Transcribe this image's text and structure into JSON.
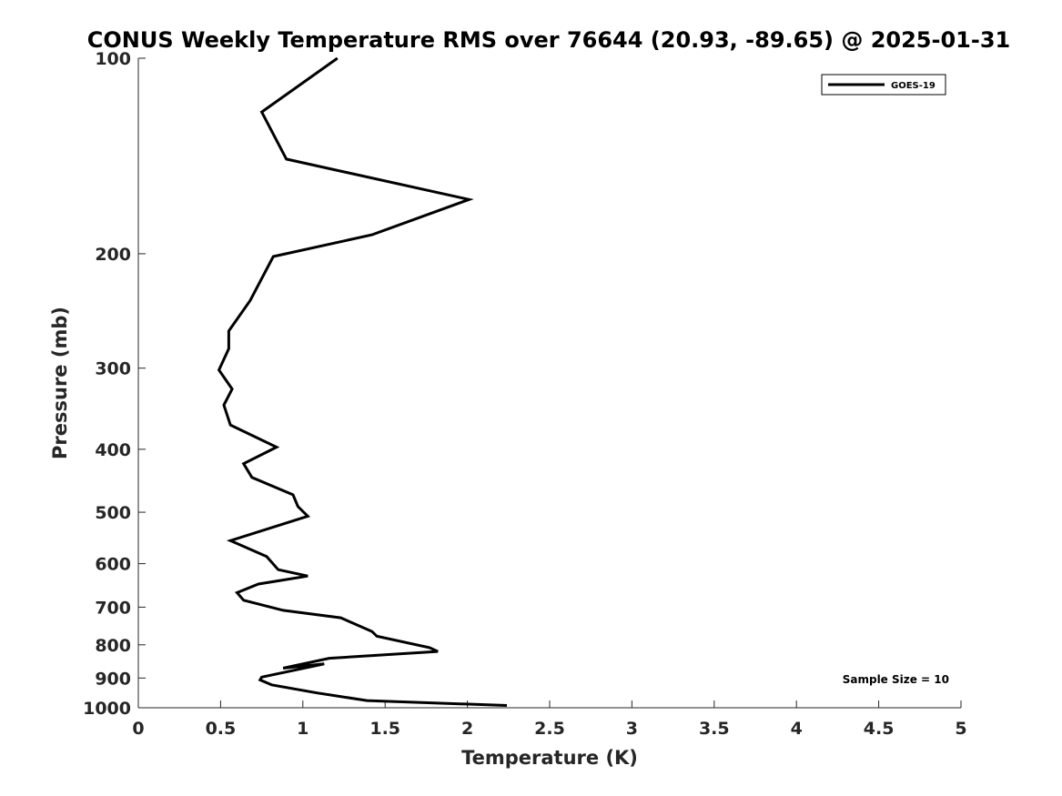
{
  "chart_data": {
    "type": "line",
    "title": "CONUS Weekly Temperature RMS over 76644 (20.93, -89.65) @ 2025-01-31",
    "xlabel": "Temperature (K)",
    "ylabel": "Pressure (mb)",
    "xlim": [
      0,
      5
    ],
    "ylim": [
      1000,
      100
    ],
    "y_scale": "log",
    "y_inverted": true,
    "grid": false,
    "x_ticks": [
      "0",
      "0.5",
      "1",
      "1.5",
      "2",
      "2.5",
      "3",
      "3.5",
      "4",
      "4.5",
      "5"
    ],
    "y_ticks": [
      "100",
      "200",
      "300",
      "400",
      "500",
      "600",
      "700",
      "800",
      "900",
      "1000"
    ],
    "legend_position": "top-right",
    "series": [
      {
        "name": "GOES-19",
        "color": "#000000",
        "x": [
          1.21,
          0.75,
          0.9,
          2.01,
          1.42,
          0.82,
          0.68,
          0.55,
          0.55,
          0.49,
          0.57,
          0.52,
          0.56,
          0.84,
          0.64,
          0.69,
          0.94,
          0.97,
          1.03,
          0.56,
          0.78,
          0.85,
          1.03,
          0.73,
          0.6,
          0.64,
          0.88,
          1.23,
          1.42,
          1.45,
          1.77,
          1.82,
          1.16,
          0.88,
          1.13,
          0.75,
          0.74,
          0.81,
          1.09,
          1.39,
          2.24
        ],
        "y": [
          100,
          121,
          143,
          165,
          187,
          202,
          236,
          263,
          280,
          302,
          323,
          342,
          367,
          397,
          421,
          442,
          470,
          490,
          507,
          553,
          585,
          613,
          627,
          645,
          665,
          683,
          708,
          727,
          763,
          776,
          808,
          819,
          839,
          869,
          856,
          897,
          906,
          922,
          949,
          975,
          992
        ]
      }
    ],
    "annotations": [
      "Sample Size = 10"
    ]
  }
}
